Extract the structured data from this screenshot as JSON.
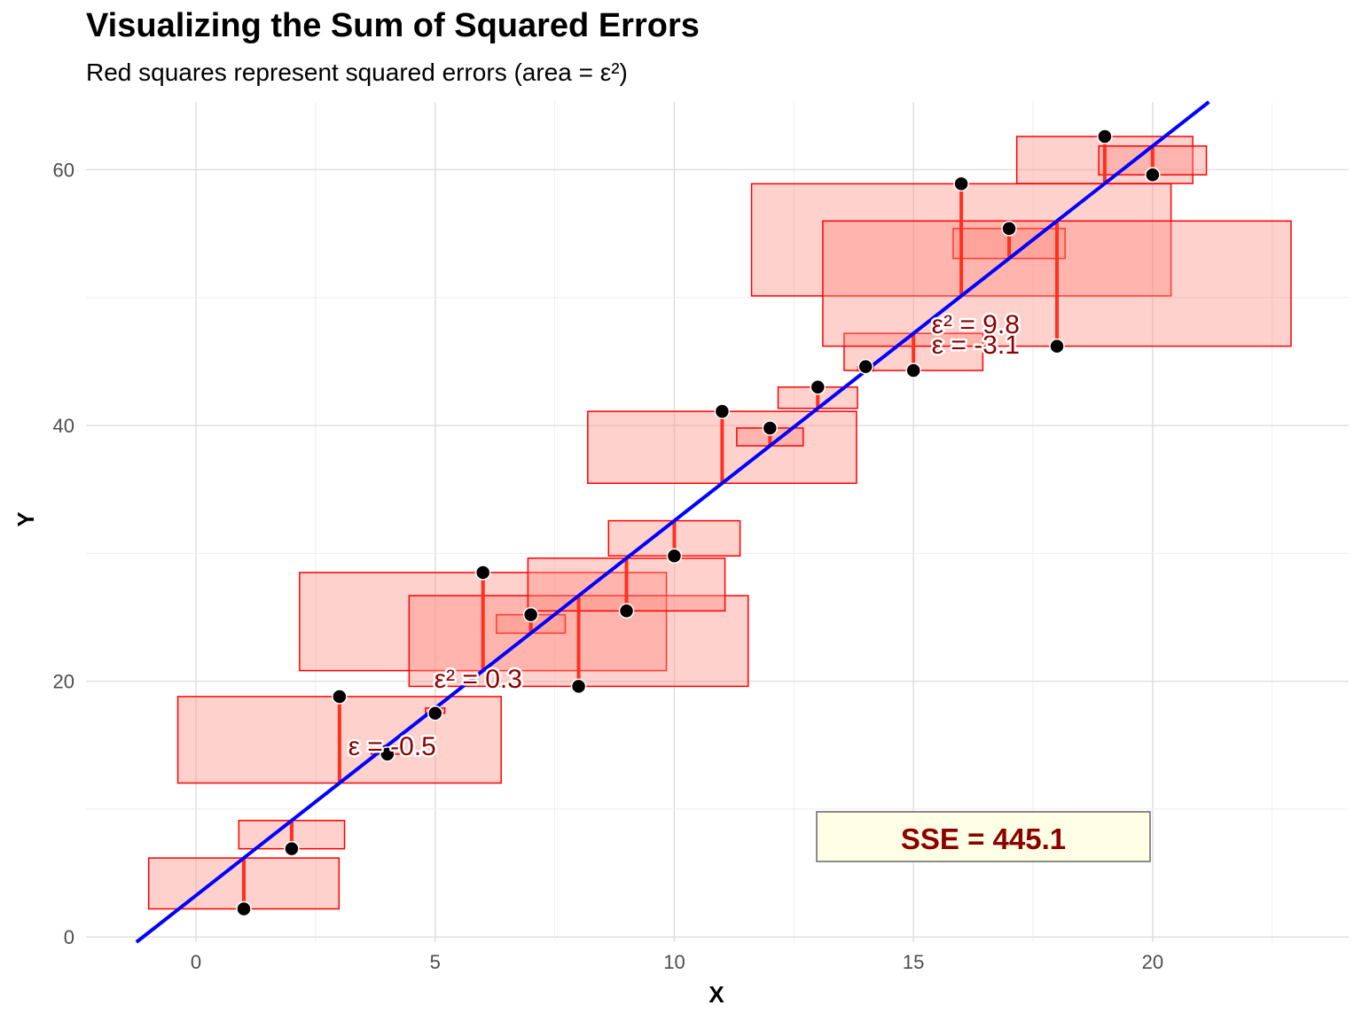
{
  "title": "Visualizing the Sum of Squared Errors",
  "subtitle": "Red squares represent squared errors (area = ε²)",
  "chart_data": {
    "type": "scatter",
    "title": "Visualizing the Sum of Squared Errors",
    "subtitle": "Red squares represent squared errors (area = ε²)",
    "xlabel": "X",
    "ylabel": "Y",
    "xlim": [
      -2.3,
      24.1
    ],
    "ylim": [
      -0.4,
      65.3
    ],
    "x_ticks": [
      0,
      5,
      10,
      15,
      20
    ],
    "y_ticks": [
      0,
      20,
      40,
      60
    ],
    "grid": true,
    "regression_line": {
      "intercept": 3.25,
      "slope": 2.93,
      "color": "#0000ff"
    },
    "points": [
      {
        "x": 1,
        "y": 2.2
      },
      {
        "x": 2,
        "y": 6.9
      },
      {
        "x": 3,
        "y": 18.8
      },
      {
        "x": 4,
        "y": 14.3
      },
      {
        "x": 5,
        "y": 17.5
      },
      {
        "x": 6,
        "y": 28.5
      },
      {
        "x": 7,
        "y": 25.2
      },
      {
        "x": 8,
        "y": 19.6
      },
      {
        "x": 9,
        "y": 25.5
      },
      {
        "x": 10,
        "y": 29.8
      },
      {
        "x": 11,
        "y": 41.1
      },
      {
        "x": 12,
        "y": 39.8
      },
      {
        "x": 13,
        "y": 43.0
      },
      {
        "x": 14,
        "y": 44.6
      },
      {
        "x": 15,
        "y": 44.3
      },
      {
        "x": 16,
        "y": 58.9
      },
      {
        "x": 17,
        "y": 55.4
      },
      {
        "x": 18,
        "y": 46.2
      },
      {
        "x": 19,
        "y": 62.6
      },
      {
        "x": 20,
        "y": 59.6
      }
    ],
    "annotations": [
      {
        "text": "ε = -0.5",
        "x": 4.1,
        "y": 14.9
      },
      {
        "text": "ε² = 0.3",
        "x": 5.9,
        "y": 20.2
      },
      {
        "text": "ε = -3.1",
        "x": 16.3,
        "y": 46.3
      },
      {
        "text": "ε² = 9.8",
        "x": 16.3,
        "y": 47.9
      }
    ],
    "sse_label": "SSE = 445.1",
    "colors": {
      "square_fill": "#ff8c80",
      "square_stroke": "#ff0000",
      "residual": "#ff3020",
      "point": "#000000",
      "label": "#8b0000",
      "sse_box_fill": "#ffffe5"
    }
  }
}
